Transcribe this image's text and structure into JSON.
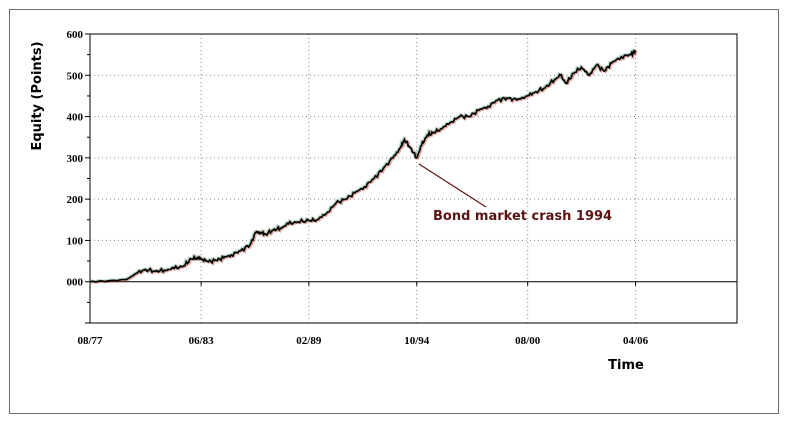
{
  "chart_data": {
    "type": "line",
    "title": "",
    "xlabel": "Time",
    "ylabel": "Equity (Points)",
    "ylim": [
      -100,
      600
    ],
    "yticks": [
      0,
      100,
      200,
      300,
      400,
      500,
      600
    ],
    "ytick_labels": [
      "000",
      "100",
      "200",
      "300",
      "400",
      "500",
      "600"
    ],
    "xlim": [
      1977.58,
      2011.58
    ],
    "xticks": [
      1977.58,
      1983.42,
      1989.08,
      1994.75,
      2000.58,
      2006.25
    ],
    "xtick_labels": [
      "08/77",
      "06/83",
      "02/89",
      "10/94",
      "08/00",
      "04/06"
    ],
    "grid": true,
    "baseline": 0,
    "series": [
      {
        "line_color": "#000000",
        "x": [
          1977.58,
          1978.5,
          1979.5,
          1980.0,
          1980.5,
          1981.0,
          1981.5,
          1982.0,
          1982.5,
          1982.9,
          1983.2,
          1983.42,
          1983.8,
          1984.2,
          1984.6,
          1985.0,
          1985.5,
          1986.0,
          1986.3,
          1986.6,
          1986.8,
          1987.2,
          1987.6,
          1988.0,
          1988.5,
          1989.08,
          1989.5,
          1990.0,
          1990.5,
          1991.0,
          1991.5,
          1992.0,
          1992.5,
          1993.0,
          1993.5,
          1993.9,
          1994.1,
          1994.4,
          1994.75,
          1995.0,
          1995.3,
          1995.6,
          1996.0,
          1996.5,
          1997.0,
          1997.5,
          1998.0,
          1998.5,
          1999.0,
          1999.5,
          2000.0,
          2000.58,
          2001.0,
          2001.5,
          2002.0,
          2002.3,
          2002.6,
          2003.0,
          2003.4,
          2003.8,
          2004.2,
          2004.6,
          2005.0,
          2005.5,
          2006.0,
          2006.25
        ],
        "values": [
          0,
          2,
          5,
          20,
          30,
          25,
          28,
          32,
          38,
          55,
          58,
          56,
          48,
          52,
          58,
          65,
          75,
          90,
          120,
          118,
          115,
          125,
          130,
          140,
          145,
          148,
          150,
          165,
          190,
          200,
          215,
          230,
          250,
          275,
          300,
          325,
          345,
          325,
          300,
          330,
          355,
          360,
          370,
          385,
          400,
          400,
          415,
          425,
          440,
          445,
          440,
          450,
          460,
          470,
          490,
          500,
          480,
          505,
          520,
          500,
          525,
          510,
          530,
          545,
          550,
          560
        ]
      }
    ],
    "annotations": [
      {
        "text": "Bond market crash 1994",
        "x": 1994.7,
        "y": 300
      }
    ]
  }
}
